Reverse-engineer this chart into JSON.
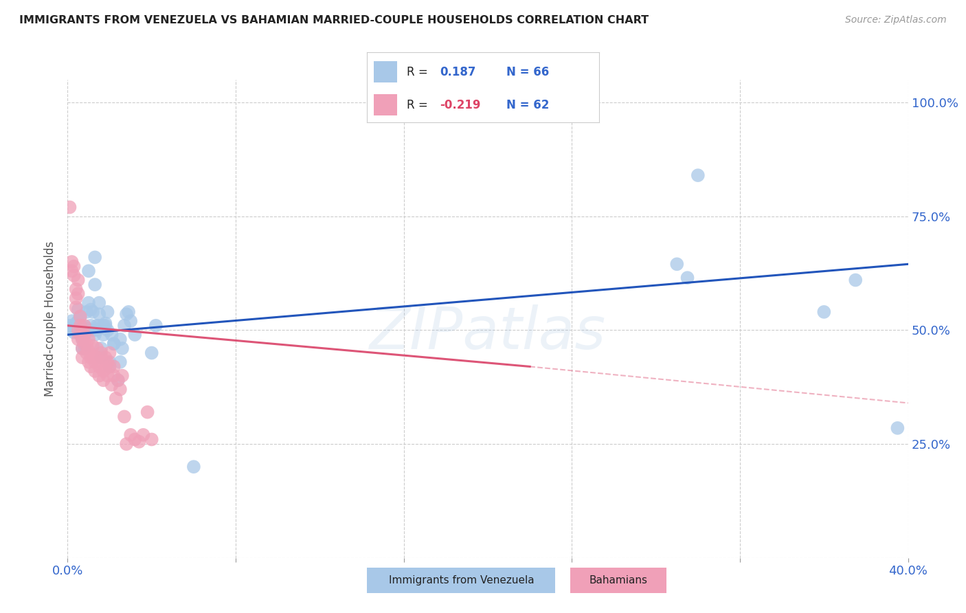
{
  "title": "IMMIGRANTS FROM VENEZUELA VS BAHAMIAN MARRIED-COUPLE HOUSEHOLDS CORRELATION CHART",
  "source": "Source: ZipAtlas.com",
  "ylabel": "Married-couple Households",
  "legend_blue_label": "Immigrants from Venezuela",
  "legend_pink_label": "Bahamians",
  "blue_color": "#A8C8E8",
  "pink_color": "#F0A0B8",
  "blue_line_color": "#2255BB",
  "pink_line_color": "#DD5577",
  "watermark": "ZIPatlas",
  "blue_dots": [
    [
      0.001,
      0.51
    ],
    [
      0.002,
      0.52
    ],
    [
      0.002,
      0.5
    ],
    [
      0.003,
      0.505
    ],
    [
      0.003,
      0.495
    ],
    [
      0.004,
      0.515
    ],
    [
      0.004,
      0.5
    ],
    [
      0.004,
      0.51
    ],
    [
      0.005,
      0.495
    ],
    [
      0.005,
      0.52
    ],
    [
      0.005,
      0.545
    ],
    [
      0.006,
      0.53
    ],
    [
      0.006,
      0.5
    ],
    [
      0.007,
      0.48
    ],
    [
      0.007,
      0.46
    ],
    [
      0.007,
      0.51
    ],
    [
      0.008,
      0.5
    ],
    [
      0.008,
      0.49
    ],
    [
      0.008,
      0.46
    ],
    [
      0.009,
      0.505
    ],
    [
      0.009,
      0.54
    ],
    [
      0.01,
      0.56
    ],
    [
      0.01,
      0.63
    ],
    [
      0.01,
      0.5
    ],
    [
      0.011,
      0.545
    ],
    [
      0.011,
      0.51
    ],
    [
      0.012,
      0.5
    ],
    [
      0.012,
      0.54
    ],
    [
      0.013,
      0.66
    ],
    [
      0.013,
      0.49
    ],
    [
      0.013,
      0.6
    ],
    [
      0.014,
      0.51
    ],
    [
      0.014,
      0.5
    ],
    [
      0.015,
      0.535
    ],
    [
      0.015,
      0.56
    ],
    [
      0.015,
      0.51
    ],
    [
      0.016,
      0.46
    ],
    [
      0.016,
      0.44
    ],
    [
      0.017,
      0.51
    ],
    [
      0.017,
      0.49
    ],
    [
      0.018,
      0.515
    ],
    [
      0.018,
      0.51
    ],
    [
      0.019,
      0.54
    ],
    [
      0.019,
      0.5
    ],
    [
      0.02,
      0.43
    ],
    [
      0.02,
      0.42
    ],
    [
      0.021,
      0.49
    ],
    [
      0.022,
      0.47
    ],
    [
      0.022,
      0.47
    ],
    [
      0.024,
      0.39
    ],
    [
      0.025,
      0.48
    ],
    [
      0.025,
      0.43
    ],
    [
      0.026,
      0.46
    ],
    [
      0.027,
      0.51
    ],
    [
      0.028,
      0.535
    ],
    [
      0.029,
      0.54
    ],
    [
      0.03,
      0.52
    ],
    [
      0.032,
      0.49
    ],
    [
      0.04,
      0.45
    ],
    [
      0.042,
      0.51
    ],
    [
      0.06,
      0.2
    ],
    [
      0.29,
      0.645
    ],
    [
      0.295,
      0.615
    ],
    [
      0.3,
      0.84
    ],
    [
      0.36,
      0.54
    ],
    [
      0.375,
      0.61
    ],
    [
      0.395,
      0.285
    ]
  ],
  "pink_dots": [
    [
      0.001,
      0.77
    ],
    [
      0.002,
      0.65
    ],
    [
      0.002,
      0.63
    ],
    [
      0.003,
      0.64
    ],
    [
      0.003,
      0.62
    ],
    [
      0.004,
      0.59
    ],
    [
      0.004,
      0.57
    ],
    [
      0.004,
      0.55
    ],
    [
      0.005,
      0.61
    ],
    [
      0.005,
      0.58
    ],
    [
      0.005,
      0.5
    ],
    [
      0.005,
      0.48
    ],
    [
      0.006,
      0.53
    ],
    [
      0.006,
      0.51
    ],
    [
      0.006,
      0.49
    ],
    [
      0.007,
      0.48
    ],
    [
      0.007,
      0.46
    ],
    [
      0.007,
      0.44
    ],
    [
      0.008,
      0.51
    ],
    [
      0.008,
      0.49
    ],
    [
      0.008,
      0.47
    ],
    [
      0.009,
      0.47
    ],
    [
      0.009,
      0.45
    ],
    [
      0.01,
      0.48
    ],
    [
      0.01,
      0.455
    ],
    [
      0.01,
      0.43
    ],
    [
      0.011,
      0.44
    ],
    [
      0.011,
      0.42
    ],
    [
      0.012,
      0.465
    ],
    [
      0.012,
      0.445
    ],
    [
      0.013,
      0.43
    ],
    [
      0.013,
      0.41
    ],
    [
      0.014,
      0.46
    ],
    [
      0.014,
      0.44
    ],
    [
      0.015,
      0.42
    ],
    [
      0.015,
      0.4
    ],
    [
      0.016,
      0.45
    ],
    [
      0.016,
      0.43
    ],
    [
      0.017,
      0.41
    ],
    [
      0.017,
      0.39
    ],
    [
      0.018,
      0.44
    ],
    [
      0.018,
      0.415
    ],
    [
      0.019,
      0.43
    ],
    [
      0.019,
      0.4
    ],
    [
      0.02,
      0.45
    ],
    [
      0.02,
      0.42
    ],
    [
      0.021,
      0.38
    ],
    [
      0.022,
      0.42
    ],
    [
      0.022,
      0.4
    ],
    [
      0.023,
      0.35
    ],
    [
      0.024,
      0.39
    ],
    [
      0.025,
      0.37
    ],
    [
      0.026,
      0.4
    ],
    [
      0.027,
      0.31
    ],
    [
      0.028,
      0.25
    ],
    [
      0.03,
      0.27
    ],
    [
      0.032,
      0.26
    ],
    [
      0.034,
      0.255
    ],
    [
      0.036,
      0.27
    ],
    [
      0.038,
      0.32
    ],
    [
      0.04,
      0.26
    ]
  ],
  "blue_line": {
    "x0": 0.0,
    "y0": 0.49,
    "x1": 0.4,
    "y1": 0.645
  },
  "pink_line_solid": {
    "x0": 0.0,
    "y0": 0.51,
    "x1": 0.22,
    "y1": 0.42
  },
  "pink_line_dashed": {
    "x0": 0.22,
    "y0": 0.42,
    "x1": 0.4,
    "y1": 0.34
  },
  "xlim": [
    0.0,
    0.4
  ],
  "ylim": [
    0.0,
    1.05
  ],
  "xticks": [
    0.0,
    0.08,
    0.16,
    0.24,
    0.32,
    0.4
  ],
  "yticks": [
    0.0,
    0.25,
    0.5,
    0.75,
    1.0
  ],
  "xtick_labels": [
    "0.0%",
    "",
    "",
    "",
    "",
    "40.0%"
  ],
  "ytick_labels": [
    "",
    "25.0%",
    "50.0%",
    "75.0%",
    "100.0%"
  ],
  "background_color": "#FFFFFF",
  "grid_color": "#CCCCCC",
  "grid_linestyle": "--"
}
